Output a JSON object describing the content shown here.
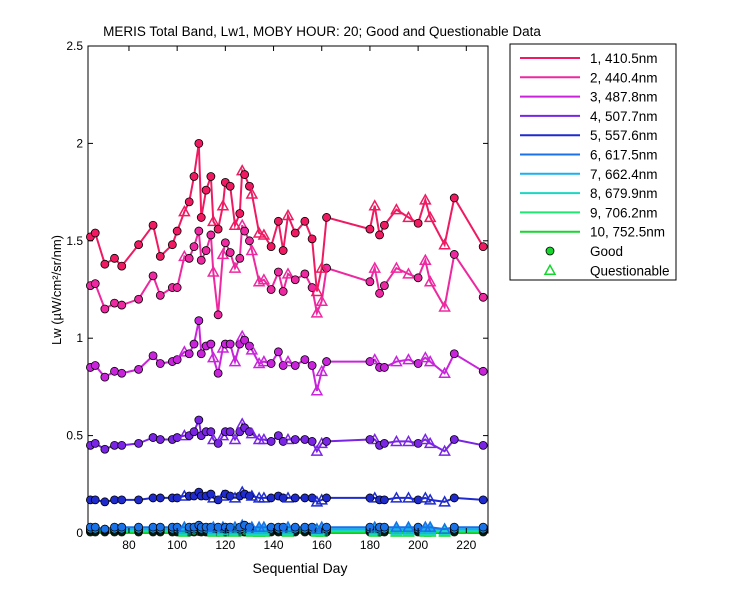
{
  "chart_data": {
    "type": "line",
    "title": "MERIS Total Band,  Lw1, MOBY HOUR: 20;  Good and Questionable Data",
    "xlabel": "Sequential Day",
    "ylabel": "Lw (µW/cm²/sr/nm)",
    "xlim": [
      63,
      229
    ],
    "ylim": [
      0,
      2.5
    ],
    "xticks": [
      80,
      100,
      120,
      140,
      160,
      180,
      200,
      220
    ],
    "xtick_labels": [
      "80",
      "100",
      "120",
      "140",
      "160",
      "180",
      "200",
      "220"
    ],
    "yticks": [
      0,
      0.5,
      1,
      1.5,
      2,
      2.5
    ],
    "ytick_labels": [
      "0",
      "0.5",
      "1",
      "1.5",
      "2",
      "2.5"
    ],
    "grid": false,
    "legend_position": "outside-top-right",
    "x": [
      64,
      66,
      70,
      74,
      77,
      84,
      90,
      93,
      98,
      100,
      103,
      105,
      107,
      109,
      110,
      112,
      114,
      115,
      117,
      119,
      120,
      122,
      124,
      126,
      127,
      128,
      130,
      131,
      134,
      136,
      139,
      142,
      144,
      146,
      149,
      153,
      156,
      158,
      160,
      162,
      180,
      182,
      184,
      186,
      191,
      196,
      200,
      203,
      205,
      211,
      215,
      227
    ],
    "status": [
      "G",
      "G",
      "G",
      "G",
      "G",
      "G",
      "G",
      "G",
      "G",
      "G",
      "Q",
      "G",
      "G",
      "G",
      "G",
      "G",
      "G",
      "Q",
      "G",
      "Q",
      "G",
      "G",
      "Q",
      "G",
      "Q",
      "G",
      "G",
      "Q",
      "Q",
      "Q",
      "G",
      "G",
      "G",
      "Q",
      "G",
      "G",
      "G",
      "Q",
      "Q",
      "G",
      "G",
      "Q",
      "G",
      "G",
      "Q",
      "Q",
      "G",
      "Q",
      "Q",
      "Q",
      "G",
      "G"
    ],
    "series": [
      {
        "name": "1, 410.5nm",
        "color": "#ef1a62",
        "values": [
          1.52,
          1.54,
          1.38,
          1.41,
          1.37,
          1.48,
          1.58,
          1.42,
          1.48,
          1.55,
          1.65,
          1.7,
          1.83,
          2.0,
          1.62,
          1.76,
          1.83,
          1.6,
          1.56,
          1.68,
          1.8,
          1.78,
          1.58,
          1.64,
          1.86,
          1.84,
          1.78,
          1.74,
          1.54,
          1.53,
          1.47,
          1.6,
          1.45,
          1.63,
          1.54,
          1.6,
          1.51,
          1.24,
          1.36,
          1.62,
          1.56,
          1.68,
          1.53,
          1.58,
          1.66,
          1.62,
          1.59,
          1.71,
          1.62,
          1.48,
          1.72,
          1.47
        ]
      },
      {
        "name": "2, 440.4nm",
        "color": "#ee28a0",
        "values": [
          1.27,
          1.28,
          1.15,
          1.18,
          1.17,
          1.2,
          1.32,
          1.22,
          1.26,
          1.26,
          1.42,
          1.41,
          1.47,
          1.55,
          1.4,
          1.45,
          1.53,
          1.34,
          1.12,
          1.43,
          1.49,
          1.44,
          1.36,
          1.41,
          1.58,
          1.55,
          1.5,
          1.45,
          1.29,
          1.3,
          1.25,
          1.34,
          1.24,
          1.33,
          1.3,
          1.33,
          1.26,
          1.13,
          1.19,
          1.36,
          1.29,
          1.36,
          1.23,
          1.27,
          1.36,
          1.33,
          1.31,
          1.4,
          1.29,
          1.16,
          1.43,
          1.21
        ]
      },
      {
        "name": "3, 487.8nm",
        "color": "#c924dc",
        "values": [
          0.85,
          0.86,
          0.8,
          0.83,
          0.82,
          0.84,
          0.91,
          0.87,
          0.88,
          0.89,
          0.93,
          0.92,
          0.97,
          1.09,
          0.92,
          0.96,
          0.97,
          0.9,
          0.82,
          0.95,
          0.97,
          0.97,
          0.88,
          0.97,
          1.01,
          0.99,
          0.96,
          0.94,
          0.87,
          0.88,
          0.87,
          0.93,
          0.86,
          0.88,
          0.86,
          0.89,
          0.86,
          0.73,
          0.83,
          0.88,
          0.88,
          0.89,
          0.85,
          0.85,
          0.88,
          0.89,
          0.87,
          0.9,
          0.88,
          0.82,
          0.92,
          0.83
        ]
      },
      {
        "name": "4, 507.7nm",
        "color": "#7a24e6",
        "values": [
          0.45,
          0.46,
          0.43,
          0.45,
          0.45,
          0.46,
          0.49,
          0.48,
          0.48,
          0.49,
          0.5,
          0.5,
          0.52,
          0.58,
          0.5,
          0.52,
          0.52,
          0.48,
          0.46,
          0.5,
          0.52,
          0.52,
          0.48,
          0.52,
          0.56,
          0.54,
          0.52,
          0.51,
          0.48,
          0.48,
          0.47,
          0.5,
          0.47,
          0.48,
          0.48,
          0.48,
          0.47,
          0.42,
          0.46,
          0.47,
          0.48,
          0.48,
          0.45,
          0.46,
          0.47,
          0.47,
          0.46,
          0.48,
          0.46,
          0.42,
          0.48,
          0.45
        ]
      },
      {
        "name": "5, 557.6nm",
        "color": "#1f2bcd",
        "values": [
          0.17,
          0.17,
          0.16,
          0.17,
          0.17,
          0.17,
          0.18,
          0.18,
          0.18,
          0.18,
          0.19,
          0.19,
          0.19,
          0.21,
          0.19,
          0.19,
          0.2,
          0.18,
          0.17,
          0.19,
          0.2,
          0.19,
          0.18,
          0.19,
          0.21,
          0.2,
          0.19,
          0.19,
          0.18,
          0.18,
          0.18,
          0.19,
          0.18,
          0.18,
          0.18,
          0.18,
          0.18,
          0.16,
          0.17,
          0.18,
          0.18,
          0.18,
          0.17,
          0.17,
          0.18,
          0.18,
          0.17,
          0.18,
          0.17,
          0.16,
          0.18,
          0.17
        ]
      },
      {
        "name": "6, 617.5nm",
        "color": "#1a72e8",
        "values": [
          0.03,
          0.03,
          0.02,
          0.03,
          0.03,
          0.03,
          0.03,
          0.03,
          0.03,
          0.03,
          0.03,
          0.03,
          0.03,
          0.04,
          0.03,
          0.03,
          0.03,
          0.03,
          0.03,
          0.03,
          0.03,
          0.03,
          0.03,
          0.03,
          0.04,
          0.04,
          0.03,
          0.03,
          0.03,
          0.03,
          0.03,
          0.03,
          0.03,
          0.03,
          0.03,
          0.03,
          0.03,
          0.02,
          0.03,
          0.03,
          0.03,
          0.03,
          0.03,
          0.03,
          0.03,
          0.03,
          0.03,
          0.03,
          0.03,
          0.02,
          0.03,
          0.03
        ]
      },
      {
        "name": "7, 662.4nm",
        "color": "#16b2f0",
        "values": [
          0.02,
          0.02,
          0.02,
          0.02,
          0.02,
          0.02,
          0.02,
          0.02,
          0.02,
          0.02,
          0.02,
          0.02,
          0.02,
          0.03,
          0.02,
          0.02,
          0.02,
          0.02,
          0.02,
          0.02,
          0.02,
          0.02,
          0.02,
          0.02,
          0.03,
          0.03,
          0.02,
          0.02,
          0.02,
          0.02,
          0.02,
          0.02,
          0.02,
          0.02,
          0.02,
          0.02,
          0.02,
          0.02,
          0.02,
          0.02,
          0.02,
          0.02,
          0.02,
          0.02,
          0.02,
          0.02,
          0.02,
          0.02,
          0.02,
          0.02,
          0.02,
          0.02
        ]
      },
      {
        "name": "8, 679.9nm",
        "color": "#1ad6c3",
        "values": [
          0.015,
          0.015,
          0.015,
          0.015,
          0.015,
          0.015,
          0.015,
          0.015,
          0.015,
          0.015,
          0.015,
          0.015,
          0.02,
          0.025,
          0.015,
          0.015,
          0.02,
          0.015,
          0.015,
          0.015,
          0.02,
          0.015,
          0.015,
          0.015,
          0.025,
          0.02,
          0.015,
          0.015,
          0.015,
          0.015,
          0.015,
          0.015,
          0.015,
          0.015,
          0.015,
          0.015,
          0.015,
          0.015,
          0.015,
          0.015,
          0.015,
          0.015,
          0.015,
          0.015,
          0.015,
          0.015,
          0.015,
          0.015,
          0.015,
          0.015,
          0.015,
          0.015
        ]
      },
      {
        "name": "9, 706.2nm",
        "color": "#1fe871",
        "values": [
          0.01,
          0.01,
          0.01,
          0.01,
          0.01,
          0.01,
          0.01,
          0.01,
          0.01,
          0.01,
          0.01,
          0.01,
          0.01,
          0.015,
          0.01,
          0.01,
          0.01,
          0.01,
          0.01,
          0.01,
          0.01,
          0.01,
          0.01,
          0.01,
          0.015,
          0.01,
          0.01,
          0.01,
          0.01,
          0.01,
          0.01,
          0.01,
          0.01,
          0.01,
          0.01,
          0.01,
          0.01,
          0.01,
          0.01,
          0.01,
          0.01,
          0.01,
          0.01,
          0.01,
          0.01,
          0.01,
          0.01,
          0.01,
          0.01,
          0.01,
          0.01,
          0.01
        ]
      },
      {
        "name": "10, 752.5nm",
        "color": "#14d62c",
        "values": [
          0.005,
          0.005,
          0.005,
          0.005,
          0.005,
          0.005,
          0.005,
          0.005,
          0.005,
          0.005,
          0.005,
          0.005,
          0.005,
          0.008,
          0.005,
          0.005,
          0.005,
          0.005,
          0.005,
          0.005,
          0.005,
          0.005,
          0.005,
          0.005,
          0.008,
          0.005,
          0.005,
          0.005,
          0.005,
          0.005,
          0.005,
          0.005,
          0.005,
          0.005,
          0.005,
          0.005,
          0.005,
          0.005,
          0.005,
          0.005,
          0.005,
          0.005,
          0.005,
          0.005,
          0.005,
          0.005,
          0.005,
          0.005,
          0.005,
          0.005,
          0.005,
          0.005
        ]
      }
    ],
    "legend": {
      "good_label": "Good",
      "questionable_label": "Questionable",
      "good_color": "#14d62c",
      "questionable_color": "#14d62c"
    }
  }
}
